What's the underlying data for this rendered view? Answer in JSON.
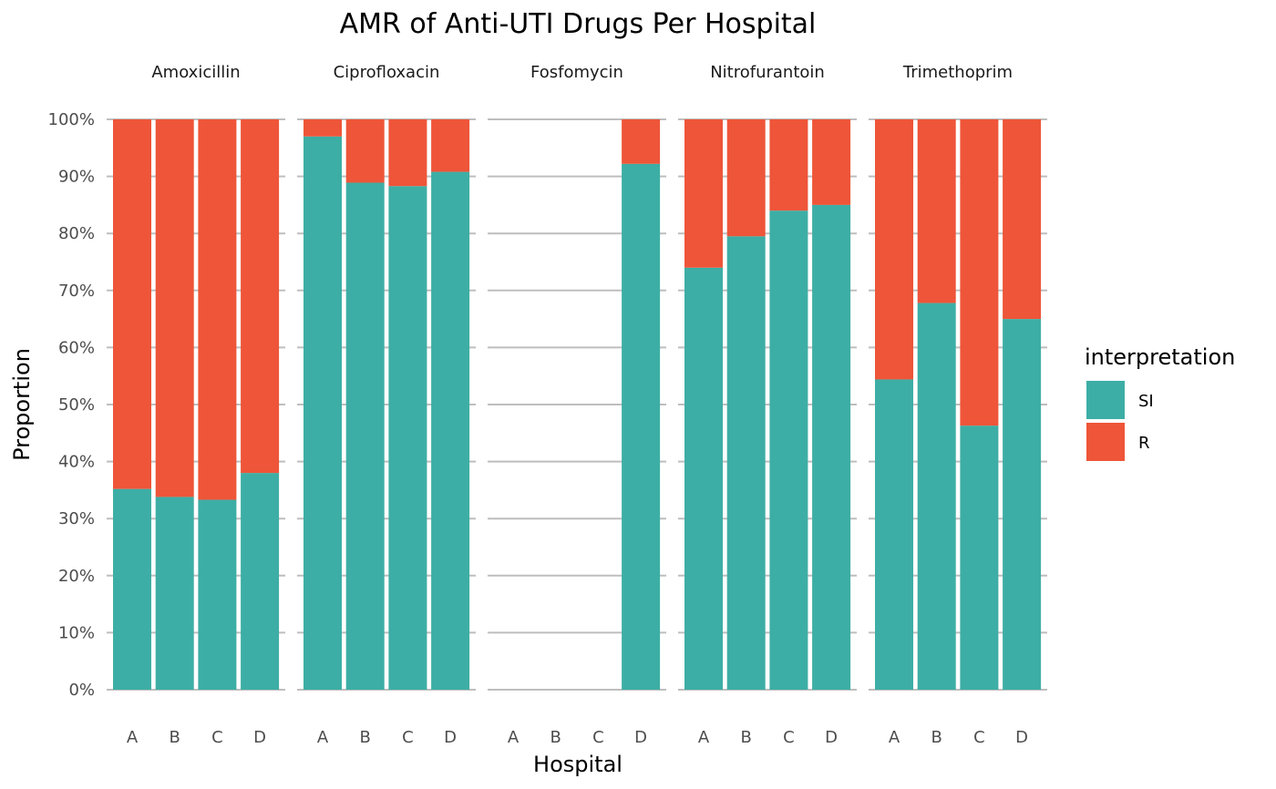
{
  "chart_data": {
    "type": "bar",
    "stacked": true,
    "title": "AMR of Anti-UTI Drugs Per Hospital",
    "xlabel": "Hospital",
    "ylabel": "Proportion",
    "ylim": [
      0,
      1
    ],
    "y_ticks": [
      "0%",
      "10%",
      "20%",
      "30%",
      "40%",
      "50%",
      "60%",
      "70%",
      "80%",
      "90%",
      "100%"
    ],
    "categories": [
      "A",
      "B",
      "C",
      "D"
    ],
    "facets": [
      "Amoxicillin",
      "Ciprofloxacin",
      "Fosfomycin",
      "Nitrofurantoin",
      "Trimethoprim"
    ],
    "series": [
      {
        "name": "SI",
        "color": "#3DAEA5",
        "values": [
          [
            0.352,
            0.338,
            0.333,
            0.38
          ],
          [
            0.97,
            0.889,
            0.883,
            0.908
          ],
          [
            null,
            null,
            null,
            0.922
          ],
          [
            0.74,
            0.795,
            0.84,
            0.85
          ],
          [
            0.544,
            0.678,
            0.463,
            0.65
          ]
        ]
      },
      {
        "name": "R",
        "color": "#EE5539",
        "values": [
          [
            0.648,
            0.662,
            0.667,
            0.62
          ],
          [
            0.03,
            0.111,
            0.117,
            0.092
          ],
          [
            null,
            null,
            null,
            0.078
          ],
          [
            0.26,
            0.205,
            0.16,
            0.15
          ],
          [
            0.456,
            0.322,
            0.537,
            0.35
          ]
        ]
      }
    ],
    "legend": {
      "title": "interpretation",
      "placement": "right"
    },
    "grid": true
  }
}
